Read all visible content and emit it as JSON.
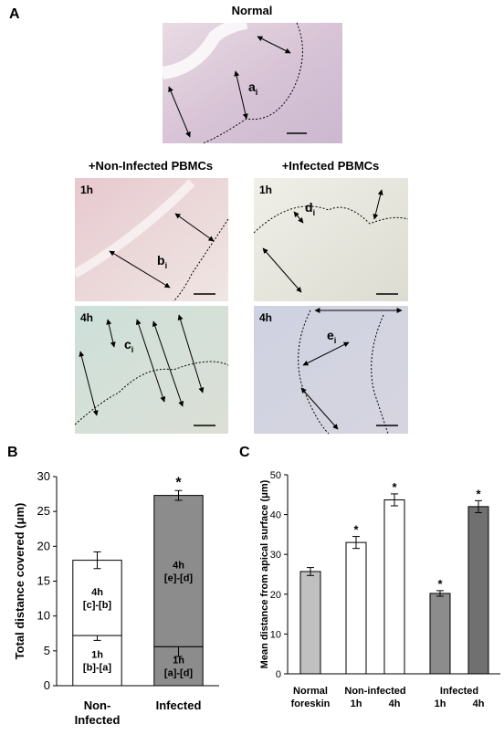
{
  "panel_a": {
    "label": "A",
    "title": "Normal",
    "col_headers": [
      "+Non-Infected PBMCs",
      "+Infected PBMCs"
    ],
    "images": [
      {
        "label": "a",
        "subscript": "i"
      },
      {
        "time": "1h",
        "label": "b",
        "subscript": "i"
      },
      {
        "time": "1h",
        "label": "d",
        "subscript": "i"
      },
      {
        "time": "4h",
        "label": "c",
        "subscript": "i"
      },
      {
        "time": "4h",
        "label": "e",
        "subscript": "i"
      }
    ]
  },
  "chart_data": [
    {
      "type": "stacked_bar",
      "label": "B",
      "ylabel": "Total distance covered (μm)",
      "categories": [
        [
          "Non-",
          "Infected"
        ],
        [
          "Infected"
        ]
      ],
      "colors": [
        "#ffffff",
        "#8c8c8c"
      ],
      "series": [
        {
          "name": "1h",
          "values": [
            7.2,
            5.6
          ],
          "errors": [
            0.7,
            1.4
          ],
          "segment_labels": [
            "[b]-[a]",
            "[a]-[d]"
          ]
        },
        {
          "name": "4h",
          "values": [
            10.8,
            21.7
          ],
          "errors": [
            1.2,
            0.7
          ],
          "segment_labels": [
            "[c]-[b]",
            "[e]-[d]"
          ]
        }
      ],
      "significance": [
        null,
        "*"
      ],
      "ylim": [
        0,
        30
      ],
      "yticks": [
        0,
        5,
        10,
        15,
        20,
        25,
        30
      ]
    },
    {
      "type": "bar",
      "label": "C",
      "ylabel": "Mean distance from apical surface (μm)",
      "groups": [
        {
          "name": "Normal",
          "categories": [
            "foreskin"
          ]
        },
        {
          "name": "Non-infected",
          "categories": [
            "1h",
            "4h"
          ]
        },
        {
          "name": "Infected",
          "categories": [
            "1h",
            "4h"
          ]
        }
      ],
      "values": [
        25.7,
        33,
        43.7,
        20.2,
        42
      ],
      "errors": [
        1,
        1.5,
        1.5,
        0.7,
        1.5
      ],
      "colors": [
        "#c0c0c0",
        "#ffffff",
        "#ffffff",
        "#8c8c8c",
        "#707070"
      ],
      "significance": [
        null,
        "*",
        "*",
        "*",
        "*"
      ],
      "ylim": [
        0,
        50
      ],
      "yticks": [
        0,
        10,
        20,
        30,
        40,
        50
      ]
    }
  ]
}
